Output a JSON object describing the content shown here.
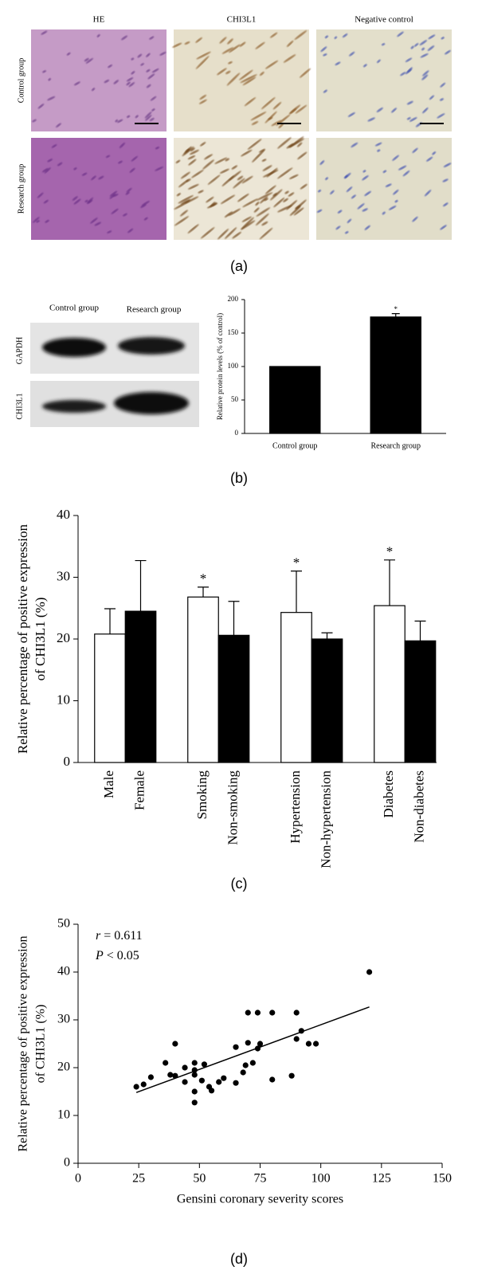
{
  "figure": {
    "panel_a": {
      "columns": [
        "HE",
        "CHI3L1",
        "Negative control"
      ],
      "rows": [
        "Control group",
        "Research group"
      ],
      "label": "(a)"
    },
    "panel_b": {
      "blot_columns": [
        "Control group",
        "Research group"
      ],
      "blot_rows": [
        "GAPDH",
        "CHI3L1"
      ],
      "label": "(b)"
    },
    "panel_c": {
      "label": "(c)"
    },
    "panel_d": {
      "label": "(d)"
    }
  },
  "chart_data": [
    {
      "type": "bar",
      "ylabel": "Relative protein levels (% of control)",
      "categories": [
        "Control group",
        "Research group"
      ],
      "values": [
        100,
        174
      ],
      "errors": [
        null,
        5
      ],
      "significance": [
        null,
        "*"
      ],
      "color": "#000000",
      "ylim": [
        0,
        200
      ],
      "yticks": [
        0,
        50,
        100,
        150,
        200
      ]
    },
    {
      "type": "bar",
      "ylabel": [
        "Relative percentage of positive expression",
        "of CHI3L1 (%)"
      ],
      "categories": [
        "Male",
        "Female",
        "Smoking",
        "Non-smoking",
        "Hypertension",
        "Non-hypertension",
        "Diabetes",
        "Non-diabetes"
      ],
      "values": [
        20.8,
        24.5,
        26.8,
        20.6,
        24.3,
        20.0,
        25.4,
        19.7
      ],
      "errors": [
        4.1,
        8.2,
        1.6,
        5.5,
        6.7,
        1.0,
        7.4,
        3.2
      ],
      "significance": [
        null,
        null,
        "*",
        null,
        "*",
        null,
        "*",
        null
      ],
      "colors": [
        "#ffffff",
        "#000000",
        "#ffffff",
        "#000000",
        "#ffffff",
        "#000000",
        "#ffffff",
        "#000000"
      ],
      "ylim": [
        0,
        40
      ],
      "yticks": [
        0,
        10,
        20,
        30,
        40
      ]
    },
    {
      "type": "scatter",
      "xlabel": "Gensini coronary severity scores",
      "ylabel": [
        "Relative percentage of positive expression",
        "of CHI3L1 (%)"
      ],
      "annotations": [
        "r = 0.611",
        "P < 0.05"
      ],
      "x": [
        24,
        27,
        30,
        36,
        38,
        40,
        40,
        44,
        44,
        48,
        48,
        48,
        48,
        48,
        52,
        51,
        54,
        55,
        58,
        60,
        65,
        65,
        68,
        69,
        70,
        70,
        72,
        74,
        74,
        75,
        80,
        80,
        88,
        90,
        90,
        92,
        95,
        98,
        120
      ],
      "y": [
        16,
        16.5,
        18,
        21,
        18.5,
        25,
        18.3,
        17,
        20,
        21,
        19.5,
        18.5,
        15,
        12.7,
        20.7,
        17.3,
        16,
        15.2,
        17,
        17.8,
        16.8,
        24.3,
        19,
        20.5,
        31.5,
        25.2,
        21,
        31.5,
        24,
        25,
        31.5,
        17.5,
        18.3,
        31.5,
        26,
        27.7,
        25,
        25,
        40
      ],
      "color": "#000000",
      "fit": {
        "x": [
          24,
          120
        ],
        "y": [
          14.8,
          32.7
        ]
      },
      "xlim": [
        0,
        150
      ],
      "xticks": [
        0,
        25,
        50,
        75,
        100,
        125,
        150
      ],
      "ylim": [
        0,
        50
      ],
      "yticks": [
        0,
        10,
        20,
        30,
        40,
        50
      ]
    }
  ]
}
